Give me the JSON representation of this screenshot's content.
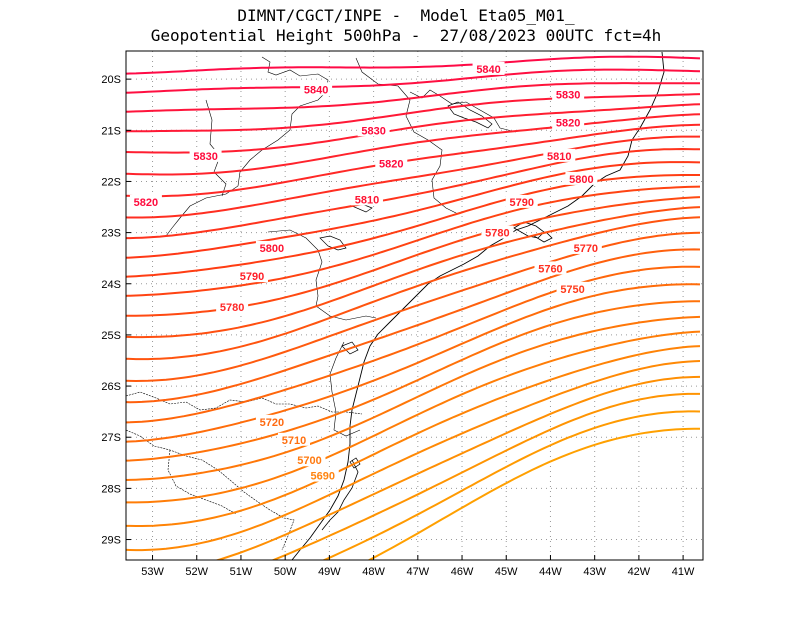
{
  "header": {
    "line1": "DIMNT/CGCT/INPE -  Model Eta05_M01_",
    "line2": "Geopotential Height 500hPa -  27/08/2023 00UTC fct=4h"
  },
  "axes": {
    "lat_ticks": [
      "20S",
      "21S",
      "22S",
      "23S",
      "24S",
      "25S",
      "26S",
      "27S",
      "28S",
      "29S"
    ],
    "lon_ticks": [
      "53W",
      "52W",
      "51W",
      "50W",
      "49W",
      "48W",
      "47W",
      "46W",
      "45W",
      "44W",
      "43W",
      "42W",
      "41W"
    ]
  },
  "map": {
    "lat_range": [
      -19.45,
      -29.4
    ],
    "lon_range": [
      -53.6,
      -40.55
    ],
    "grid": true,
    "coastline_color": "#000000"
  },
  "contour_labels": [
    {
      "text": "5840",
      "lon": -49.3,
      "lat": -20.2,
      "color": "#ff0a3c"
    },
    {
      "text": "5840",
      "lon": -45.4,
      "lat": -19.8,
      "color": "#ff0a3c"
    },
    {
      "text": "5830",
      "lon": -43.6,
      "lat": -20.3,
      "color": "#ff0a3c"
    },
    {
      "text": "5830",
      "lon": -48.0,
      "lat": -21.0,
      "color": "#ff0a3c"
    },
    {
      "text": "5830",
      "lon": -51.8,
      "lat": -21.5,
      "color": "#ff0a3c"
    },
    {
      "text": "5820",
      "lon": -43.6,
      "lat": -20.85,
      "color": "#ff0a3c"
    },
    {
      "text": "5820",
      "lon": -47.6,
      "lat": -21.65,
      "color": "#ff0a3c"
    },
    {
      "text": "5820",
      "lon": -53.15,
      "lat": -22.4,
      "color": "#ff0a3c"
    },
    {
      "text": "5810",
      "lon": -43.8,
      "lat": -21.5,
      "color": "#ff1432"
    },
    {
      "text": "5810",
      "lon": -48.15,
      "lat": -22.35,
      "color": "#ff1432"
    },
    {
      "text": "5800",
      "lon": -43.3,
      "lat": -21.95,
      "color": "#ff1432"
    },
    {
      "text": "5800",
      "lon": -50.3,
      "lat": -23.3,
      "color": "#ff1432"
    },
    {
      "text": "5790",
      "lon": -44.65,
      "lat": -22.4,
      "color": "#ff1e28"
    },
    {
      "text": "5790",
      "lon": -50.75,
      "lat": -23.85,
      "color": "#ff1e28"
    },
    {
      "text": "5780",
      "lon": -45.2,
      "lat": -23.0,
      "color": "#ff2828"
    },
    {
      "text": "5780",
      "lon": -51.2,
      "lat": -24.45,
      "color": "#ff2828"
    },
    {
      "text": "5770",
      "lon": -43.2,
      "lat": -23.3,
      "color": "#ff2a20"
    },
    {
      "text": "5760",
      "lon": -44.0,
      "lat": -23.7,
      "color": "#ff3020"
    },
    {
      "text": "5750",
      "lon": -43.5,
      "lat": -24.1,
      "color": "#ff3a1a"
    },
    {
      "text": "5720",
      "lon": -50.3,
      "lat": -26.7,
      "color": "#ff6a10"
    },
    {
      "text": "5710",
      "lon": -49.8,
      "lat": -27.05,
      "color": "#ff7010"
    },
    {
      "text": "5700",
      "lon": -49.45,
      "lat": -27.45,
      "color": "#ff7a10"
    },
    {
      "text": "5690",
      "lon": -49.15,
      "lat": -27.75,
      "color": "#ff8410"
    }
  ],
  "contour_colors": {
    "north": "#ff0a46",
    "middle": "#ff3a14",
    "south": "#ffa000"
  }
}
